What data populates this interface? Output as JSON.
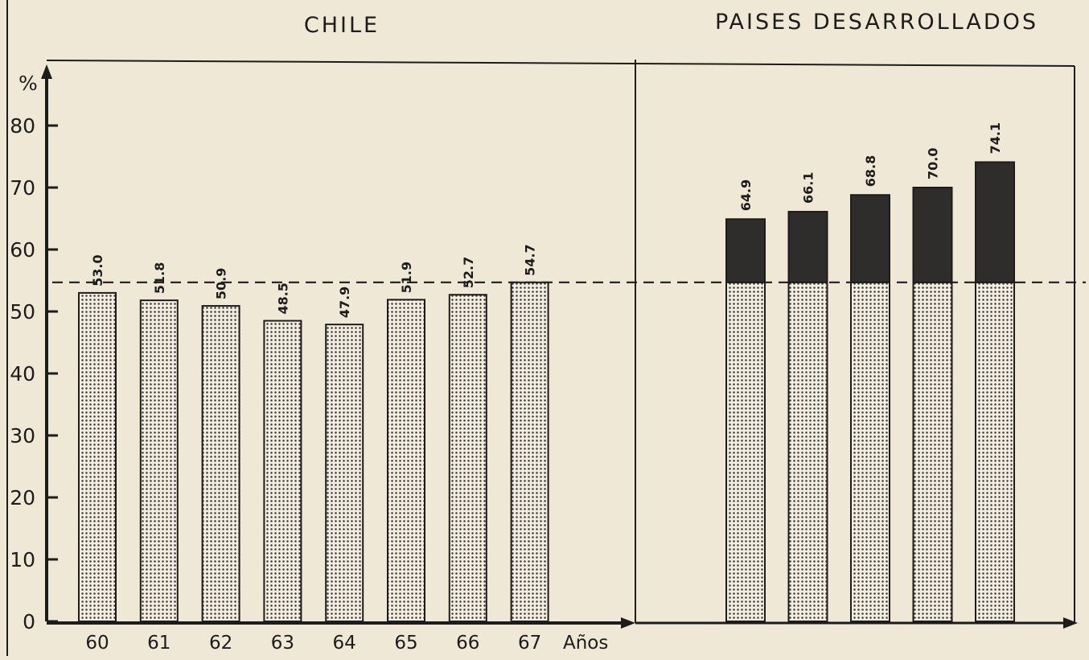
{
  "chart_data": {
    "type": "bar",
    "y_axis": {
      "unit_label": "%",
      "ticks": [
        0,
        10,
        20,
        30,
        40,
        50,
        60,
        70,
        80
      ],
      "ylim": [
        0,
        90
      ]
    },
    "reference_line": {
      "value": 54.7,
      "style": "dashed"
    },
    "panels": [
      {
        "title": "CHILE",
        "categories": [
          "60",
          "61",
          "62",
          "63",
          "64",
          "65",
          "66",
          "67"
        ],
        "values": [
          53.0,
          51.8,
          50.9,
          48.5,
          47.9,
          51.9,
          52.7,
          54.7
        ],
        "value_labels": [
          "53.0",
          "51.8",
          "50.9",
          "48.5",
          "47.9",
          "51.9",
          "52.7",
          "54.7"
        ],
        "x_unit_label": "Años"
      },
      {
        "title": "PAISES DESARROLLADOS",
        "categories": [],
        "values": [
          64.9,
          66.1,
          68.8,
          70.0,
          74.1
        ],
        "value_labels": [
          "64.9",
          "66.1",
          "68.8",
          "70.0",
          "74.1"
        ],
        "stacked_base": 54.7
      }
    ],
    "colors": {
      "background": "#efe8d6",
      "ink": "#1e1c1a",
      "bar_dark": "#2f2d2b",
      "bar_dots": "#3a3733",
      "bar_light": "#f2ede0"
    },
    "grid": false
  }
}
